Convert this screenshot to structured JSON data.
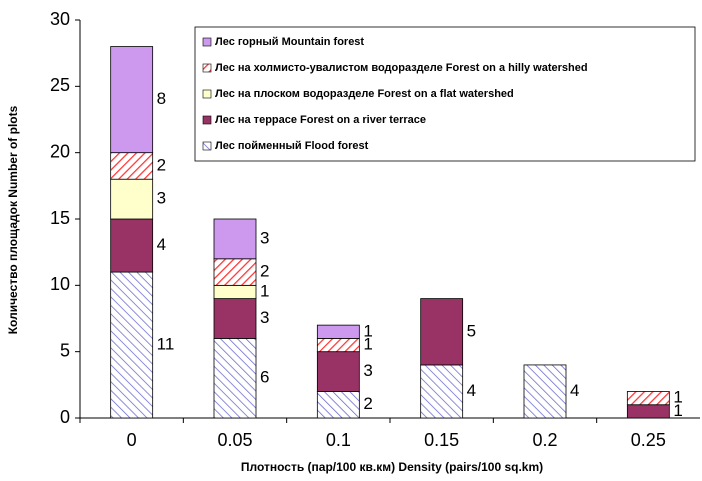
{
  "chart_data": {
    "type": "stacked_bar",
    "xlabel": "Плотность (пар/100 кв.км) Density (pairs/100 sq.km)",
    "ylabel": "Количество площадок Number of plots",
    "categories": [
      "0",
      "0.05",
      "0.1",
      "0.15",
      "0.2",
      "0.25"
    ],
    "series": [
      {
        "name": "Лес пойменный Flood forest",
        "color": "#6666cc",
        "hatch": "down",
        "values": [
          11,
          6,
          2,
          4,
          4,
          null
        ]
      },
      {
        "name": "Лес на террасе Forest on a river terrace",
        "color": "#993366",
        "values": [
          4,
          3,
          3,
          5,
          null,
          1
        ]
      },
      {
        "name": "Лес на плоском водоразделе Forest on a flat watershed",
        "color": "#ffffcc",
        "values": [
          3,
          1,
          null,
          null,
          null,
          null
        ]
      },
      {
        "name": "Лес на холмисто-увалистом водоразделе Forest on a hilly watershed",
        "color": "#ff3333",
        "hatch": "up",
        "values": [
          2,
          2,
          1,
          null,
          null,
          1
        ]
      },
      {
        "name": "Лес горный Mountain forest",
        "color": "#cc99ee",
        "values": [
          8,
          3,
          1,
          null,
          null,
          null
        ]
      }
    ],
    "ylim": [
      0,
      30
    ],
    "yticks": [
      0,
      5,
      10,
      15,
      20,
      25,
      30
    ],
    "legend": "upper right"
  }
}
